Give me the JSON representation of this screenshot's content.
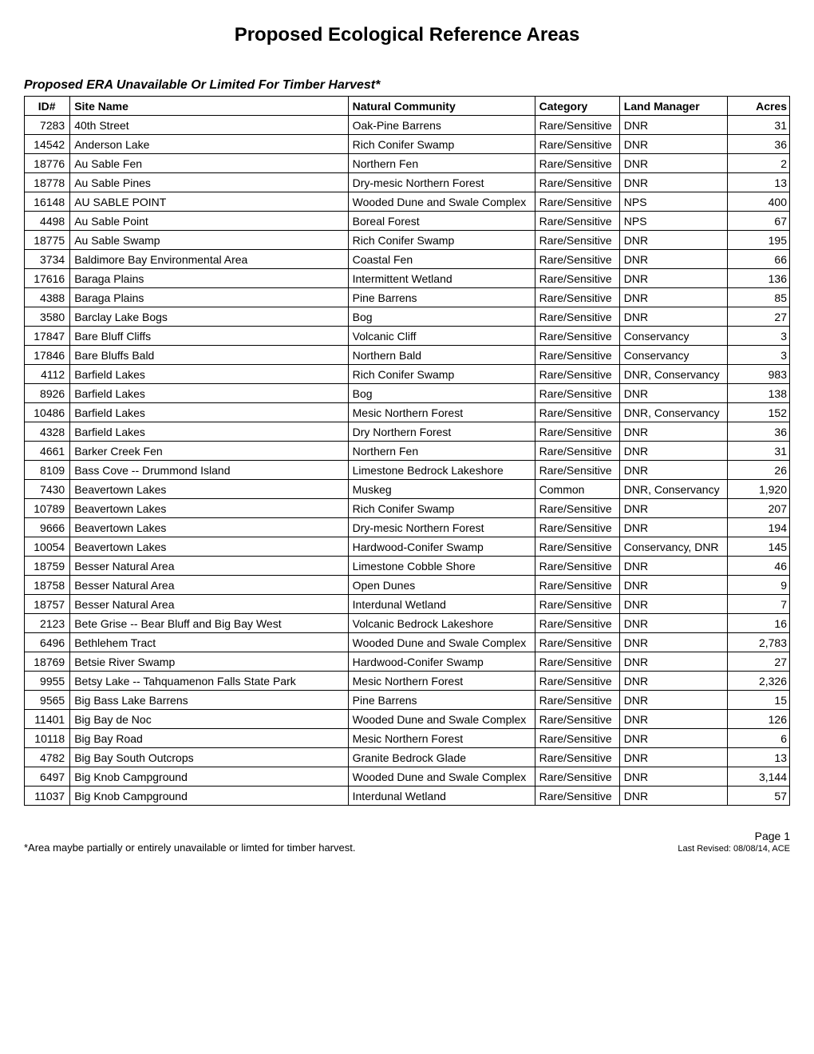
{
  "title": "Proposed Ecological Reference Areas",
  "subtitle": "Proposed ERA Unavailable Or Limited For Timber Harvest*",
  "columns": [
    "ID#",
    "Site Name",
    "Natural Community",
    "Category",
    "Land Manager",
    "Acres"
  ],
  "rows": [
    [
      "7283",
      "40th Street",
      "Oak-Pine Barrens",
      "Rare/Sensitive",
      "DNR",
      "31"
    ],
    [
      "14542",
      "Anderson Lake",
      "Rich Conifer Swamp",
      "Rare/Sensitive",
      "DNR",
      "36"
    ],
    [
      "18776",
      "Au Sable Fen",
      "Northern Fen",
      "Rare/Sensitive",
      "DNR",
      "2"
    ],
    [
      "18778",
      "Au Sable Pines",
      "Dry-mesic Northern Forest",
      "Rare/Sensitive",
      "DNR",
      "13"
    ],
    [
      "16148",
      "AU SABLE POINT",
      "Wooded Dune and Swale Complex",
      "Rare/Sensitive",
      "NPS",
      "400"
    ],
    [
      "4498",
      "Au Sable Point",
      "Boreal Forest",
      "Rare/Sensitive",
      "NPS",
      "67"
    ],
    [
      "18775",
      "Au Sable Swamp",
      "Rich Conifer Swamp",
      "Rare/Sensitive",
      "DNR",
      "195"
    ],
    [
      "3734",
      "Baldimore Bay Environmental Area",
      "Coastal Fen",
      "Rare/Sensitive",
      "DNR",
      "66"
    ],
    [
      "17616",
      "Baraga Plains",
      "Intermittent Wetland",
      "Rare/Sensitive",
      "DNR",
      "136"
    ],
    [
      "4388",
      "Baraga Plains",
      "Pine Barrens",
      "Rare/Sensitive",
      "DNR",
      "85"
    ],
    [
      "3580",
      "Barclay Lake Bogs",
      "Bog",
      "Rare/Sensitive",
      "DNR",
      "27"
    ],
    [
      "17847",
      "Bare Bluff Cliffs",
      "Volcanic Cliff",
      "Rare/Sensitive",
      "Conservancy",
      "3"
    ],
    [
      "17846",
      "Bare Bluffs Bald",
      "Northern Bald",
      "Rare/Sensitive",
      "Conservancy",
      "3"
    ],
    [
      "4112",
      "Barfield Lakes",
      "Rich Conifer Swamp",
      "Rare/Sensitive",
      "DNR, Conservancy",
      "983"
    ],
    [
      "8926",
      "Barfield Lakes",
      "Bog",
      "Rare/Sensitive",
      "DNR",
      "138"
    ],
    [
      "10486",
      "Barfield Lakes",
      "Mesic Northern Forest",
      "Rare/Sensitive",
      "DNR, Conservancy",
      "152"
    ],
    [
      "4328",
      "Barfield Lakes",
      "Dry Northern Forest",
      "Rare/Sensitive",
      "DNR",
      "36"
    ],
    [
      "4661",
      "Barker Creek Fen",
      "Northern Fen",
      "Rare/Sensitive",
      "DNR",
      "31"
    ],
    [
      "8109",
      "Bass Cove -- Drummond Island",
      "Limestone Bedrock Lakeshore",
      "Rare/Sensitive",
      "DNR",
      "26"
    ],
    [
      "7430",
      "Beavertown Lakes",
      "Muskeg",
      "Common",
      "DNR, Conservancy",
      "1,920"
    ],
    [
      "10789",
      "Beavertown Lakes",
      "Rich Conifer Swamp",
      "Rare/Sensitive",
      "DNR",
      "207"
    ],
    [
      "9666",
      "Beavertown Lakes",
      "Dry-mesic Northern Forest",
      "Rare/Sensitive",
      "DNR",
      "194"
    ],
    [
      "10054",
      "Beavertown Lakes",
      "Hardwood-Conifer Swamp",
      "Rare/Sensitive",
      "Conservancy, DNR",
      "145"
    ],
    [
      "18759",
      "Besser Natural Area",
      "Limestone Cobble Shore",
      "Rare/Sensitive",
      "DNR",
      "46"
    ],
    [
      "18758",
      "Besser Natural Area",
      "Open Dunes",
      "Rare/Sensitive",
      "DNR",
      "9"
    ],
    [
      "18757",
      "Besser Natural Area",
      "Interdunal Wetland",
      "Rare/Sensitive",
      "DNR",
      "7"
    ],
    [
      "2123",
      "Bete Grise -- Bear Bluff and Big Bay West",
      "Volcanic Bedrock Lakeshore",
      "Rare/Sensitive",
      "DNR",
      "16"
    ],
    [
      "6496",
      "Bethlehem Tract",
      "Wooded Dune and Swale Complex",
      "Rare/Sensitive",
      "DNR",
      "2,783"
    ],
    [
      "18769",
      "Betsie River Swamp",
      "Hardwood-Conifer Swamp",
      "Rare/Sensitive",
      "DNR",
      "27"
    ],
    [
      "9955",
      "Betsy Lake -- Tahquamenon Falls State Park",
      "Mesic Northern Forest",
      "Rare/Sensitive",
      "DNR",
      "2,326"
    ],
    [
      "9565",
      "Big Bass Lake Barrens",
      "Pine Barrens",
      "Rare/Sensitive",
      "DNR",
      "15"
    ],
    [
      "11401",
      "Big Bay de Noc",
      "Wooded Dune and Swale Complex",
      "Rare/Sensitive",
      "DNR",
      "126"
    ],
    [
      "10118",
      "Big Bay Road",
      "Mesic Northern Forest",
      "Rare/Sensitive",
      "DNR",
      "6"
    ],
    [
      "4782",
      "Big Bay South Outcrops",
      "Granite Bedrock Glade",
      "Rare/Sensitive",
      "DNR",
      "13"
    ],
    [
      "6497",
      "Big Knob Campground",
      "Wooded Dune and Swale Complex",
      "Rare/Sensitive",
      "DNR",
      "3,144"
    ],
    [
      "11037",
      "Big Knob Campground",
      "Interdunal Wetland",
      "Rare/Sensitive",
      "DNR",
      "57"
    ]
  ],
  "footnote": "*Area maybe partially or entirely unavailable or limted for timber harvest.",
  "page_label": "Page 1",
  "revised_label": "Last Revised: 08/08/14, ACE"
}
